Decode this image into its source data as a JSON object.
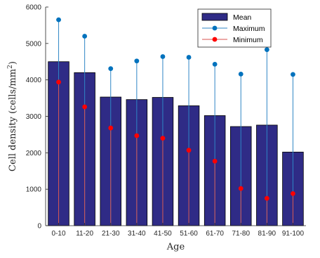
{
  "chart_data": {
    "type": "bar",
    "title": "",
    "xlabel": "Age",
    "ylabel_main": "Cell density (cells/mm",
    "ylabel_sup": "2",
    "ylabel_close": ")",
    "ylim": [
      0,
      6000
    ],
    "yticks": [
      "0",
      "1000",
      "2000",
      "3000",
      "4000",
      "5000",
      "6000"
    ],
    "grid": false,
    "legend_position": "top-right",
    "categories": [
      "0-10",
      "11-20",
      "21-30",
      "31-40",
      "41-50",
      "51-60",
      "61-70",
      "71-80",
      "81-90",
      "91-100"
    ],
    "series": [
      {
        "name": "Mean",
        "kind": "bar",
        "values": [
          4500,
          4200,
          3530,
          3460,
          3520,
          3290,
          3020,
          2720,
          2760,
          2020
        ]
      },
      {
        "name": "Maximum",
        "kind": "stem",
        "values": [
          5650,
          5200,
          4310,
          4520,
          4640,
          4620,
          4430,
          4160,
          4830,
          4150
        ]
      },
      {
        "name": "Minimum",
        "kind": "stem",
        "values": [
          3940,
          3260,
          2680,
          2470,
          2400,
          2070,
          1770,
          1020,
          750,
          880
        ]
      }
    ],
    "colors": {
      "bar_fill": "#2f2b86",
      "bar_edge": "#000000",
      "max_line": "#2f86c6",
      "max_marker": "#0072bd",
      "min_line": "#d9534f",
      "min_marker": "#ff0000"
    }
  }
}
